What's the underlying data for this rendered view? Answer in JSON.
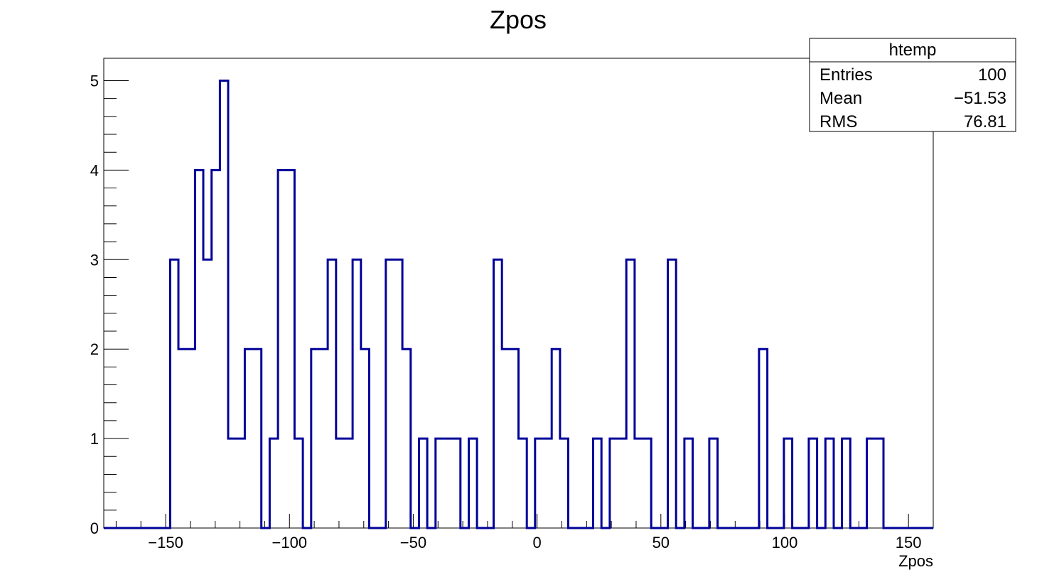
{
  "chart_data": {
    "type": "histogram",
    "title": "Zpos",
    "xlabel": "Zpos",
    "ylabel": "",
    "xlim": [
      -175,
      160
    ],
    "ylim": [
      0,
      5.25
    ],
    "bin_width": 3.35,
    "bin_start": -175,
    "counts": [
      0,
      0,
      0,
      0,
      0,
      0,
      0,
      0,
      3,
      2,
      2,
      4,
      3,
      4,
      5,
      1,
      1,
      2,
      2,
      0,
      1,
      4,
      4,
      1,
      0,
      2,
      2,
      3,
      1,
      1,
      3,
      2,
      0,
      0,
      3,
      3,
      2,
      0,
      1,
      0,
      1,
      1,
      1,
      0,
      1,
      0,
      0,
      3,
      2,
      2,
      1,
      0,
      1,
      1,
      2,
      1,
      0,
      0,
      0,
      1,
      0,
      1,
      1,
      3,
      1,
      1,
      0,
      0,
      3,
      0,
      1,
      0,
      0,
      1,
      0,
      0,
      0,
      0,
      0,
      2,
      0,
      0,
      1,
      0,
      0,
      1,
      0,
      1,
      0,
      1,
      0,
      0,
      1,
      1,
      0,
      0,
      0,
      0,
      0,
      0
    ],
    "line_color": "#000099",
    "x_ticks": [
      -150,
      -100,
      -50,
      0,
      50,
      100,
      150
    ],
    "x_tick_labels": [
      "−150",
      "−100",
      "−50",
      "0",
      "50",
      "100",
      "150"
    ],
    "y_ticks": [
      0,
      1,
      2,
      3,
      4,
      5
    ],
    "y_tick_labels": [
      "0",
      "1",
      "2",
      "3",
      "4",
      "5"
    ],
    "stats_box": {
      "name": "htemp",
      "rows": [
        {
          "label": "Entries",
          "value": "100"
        },
        {
          "label": "Mean",
          "value": "−51.53"
        },
        {
          "label": "RMS",
          "value": "76.81"
        }
      ]
    }
  }
}
